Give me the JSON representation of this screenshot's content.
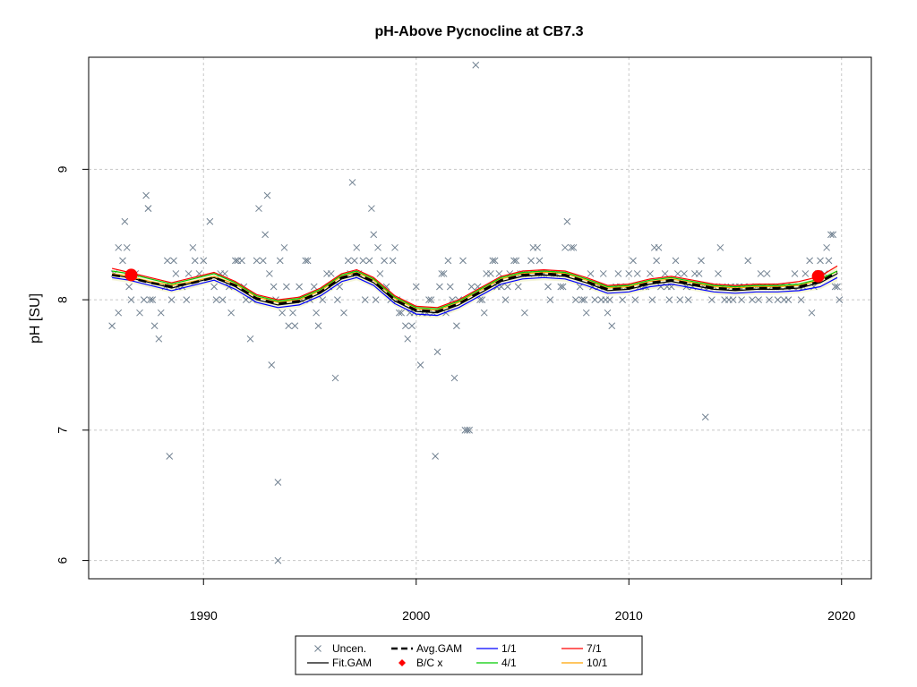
{
  "chart_data": {
    "type": "scatter",
    "title": "pH-Above Pycnocline at CB7.3",
    "xlabel": "",
    "ylabel": "pH [SU]",
    "xlim": [
      1984.6,
      2021.4
    ],
    "ylim": [
      5.86,
      9.86
    ],
    "xticks": [
      1990,
      2000,
      2010,
      2020
    ],
    "yticks": [
      6,
      7,
      8,
      9
    ],
    "xtick_labels": [
      "1990",
      "2000",
      "2010",
      "2020"
    ],
    "ytick_labels": [
      "6",
      "7",
      "8",
      "9"
    ],
    "grid": true,
    "legend_position": "bottom-center",
    "colors": {
      "uncen": "#708090",
      "fit": "#000000",
      "avg": "#000000",
      "bc": "#ff0000",
      "s1_1": "#0000ff",
      "s4_1": "#00cc00",
      "s7_1": "#ff0000",
      "s10_1": "#ffa500",
      "band": "#f5f5d8"
    },
    "legend": [
      {
        "key": "uncen",
        "label": "Uncen."
      },
      {
        "key": "avg",
        "label": "Avg.GAM"
      },
      {
        "key": "s1_1",
        "label": "1/1"
      },
      {
        "key": "s7_1",
        "label": "7/1"
      },
      {
        "key": "fit",
        "label": "Fit.GAM"
      },
      {
        "key": "bc",
        "label": "B/C x"
      },
      {
        "key": "s4_1",
        "label": "4/1"
      },
      {
        "key": "s10_1",
        "label": "10/1"
      }
    ],
    "curve_x": [
      1985.7,
      1986.5,
      1987.5,
      1988.5,
      1989.5,
      1990.5,
      1991.5,
      1992.5,
      1993.5,
      1994.5,
      1995.5,
      1996.5,
      1997.2,
      1998,
      1999,
      2000,
      2001,
      2002,
      2003,
      2004,
      2005,
      2006,
      2007,
      2008,
      2009,
      2010,
      2011,
      2012,
      2013,
      2014,
      2015,
      2016,
      2017,
      2018,
      2019,
      2019.8
    ],
    "series": [
      {
        "name": "Fit.GAM",
        "key": "fit",
        "y": [
          8.19,
          8.17,
          8.13,
          8.09,
          8.13,
          8.17,
          8.1,
          8.0,
          7.96,
          7.98,
          8.05,
          8.16,
          8.19,
          8.13,
          7.99,
          7.91,
          7.9,
          7.96,
          8.05,
          8.14,
          8.18,
          8.19,
          8.18,
          8.13,
          8.07,
          8.08,
          8.12,
          8.14,
          8.11,
          8.08,
          8.07,
          8.08,
          8.08,
          8.09,
          8.13,
          8.2
        ]
      },
      {
        "name": "Avg.GAM",
        "key": "avg",
        "y": [
          8.19,
          8.17,
          8.13,
          8.1,
          8.13,
          8.17,
          8.11,
          8.01,
          7.97,
          7.99,
          8.06,
          8.17,
          8.2,
          8.14,
          8.0,
          7.92,
          7.91,
          7.97,
          8.06,
          8.15,
          8.19,
          8.2,
          8.19,
          8.14,
          8.08,
          8.09,
          8.13,
          8.15,
          8.12,
          8.09,
          8.08,
          8.09,
          8.09,
          8.1,
          8.14,
          8.21
        ]
      },
      {
        "name": "1/1",
        "key": "s1_1",
        "y": [
          8.17,
          8.15,
          8.11,
          8.07,
          8.11,
          8.15,
          8.08,
          7.98,
          7.94,
          7.96,
          8.03,
          8.14,
          8.17,
          8.11,
          7.97,
          7.89,
          7.88,
          7.94,
          8.03,
          8.12,
          8.16,
          8.17,
          8.16,
          8.11,
          8.05,
          8.06,
          8.1,
          8.12,
          8.09,
          8.06,
          8.05,
          8.06,
          8.06,
          8.07,
          8.1,
          8.17
        ]
      },
      {
        "name": "4/1",
        "key": "s4_1",
        "y": [
          8.22,
          8.2,
          8.16,
          8.12,
          8.16,
          8.2,
          8.13,
          8.03,
          7.99,
          8.01,
          8.08,
          8.19,
          8.22,
          8.16,
          8.02,
          7.94,
          7.93,
          7.99,
          8.08,
          8.17,
          8.21,
          8.22,
          8.21,
          8.16,
          8.1,
          8.11,
          8.15,
          8.17,
          8.14,
          8.11,
          8.1,
          8.11,
          8.11,
          8.12,
          8.16,
          8.22
        ]
      },
      {
        "name": "7/1",
        "key": "s7_1",
        "y": [
          8.24,
          8.21,
          8.17,
          8.13,
          8.17,
          8.21,
          8.14,
          8.04,
          8.0,
          8.02,
          8.09,
          8.2,
          8.23,
          8.17,
          8.03,
          7.95,
          7.94,
          8.0,
          8.09,
          8.18,
          8.22,
          8.23,
          8.22,
          8.17,
          8.11,
          8.12,
          8.16,
          8.18,
          8.15,
          8.12,
          8.11,
          8.12,
          8.12,
          8.14,
          8.18,
          8.26
        ]
      },
      {
        "name": "10/1",
        "key": "s10_1",
        "y": [
          8.2,
          8.18,
          8.14,
          8.11,
          8.14,
          8.18,
          8.12,
          8.02,
          7.98,
          8.0,
          8.07,
          8.18,
          8.21,
          8.15,
          8.01,
          7.93,
          7.92,
          7.98,
          8.07,
          8.16,
          8.2,
          8.21,
          8.2,
          8.15,
          8.09,
          8.1,
          8.14,
          8.16,
          8.13,
          8.1,
          8.09,
          8.1,
          8.1,
          8.11,
          8.15,
          8.22
        ]
      }
    ],
    "band_lower": [
      8.15,
      8.13,
      8.09,
      8.05,
      8.09,
      8.13,
      8.06,
      7.96,
      7.92,
      7.94,
      8.01,
      8.12,
      8.15,
      8.09,
      7.95,
      7.87,
      7.86,
      7.92,
      8.01,
      8.1,
      8.14,
      8.15,
      8.14,
      8.09,
      8.03,
      8.04,
      8.08,
      8.1,
      8.07,
      8.04,
      8.03,
      8.04,
      8.04,
      8.05,
      8.08,
      8.14
    ],
    "band_upper": [
      8.23,
      8.21,
      8.17,
      8.13,
      8.17,
      8.21,
      8.14,
      8.04,
      8.0,
      8.02,
      8.09,
      8.2,
      8.23,
      8.17,
      8.03,
      7.95,
      7.94,
      8.0,
      8.09,
      8.18,
      8.22,
      8.23,
      8.22,
      8.17,
      8.11,
      8.12,
      8.16,
      8.18,
      8.15,
      8.12,
      8.11,
      8.12,
      8.12,
      8.14,
      8.18,
      8.26
    ],
    "bc_points": [
      {
        "x": 1986.6,
        "y": 8.19
      },
      {
        "x": 2018.9,
        "y": 8.18
      }
    ],
    "uncen_points": [
      [
        1985.7,
        7.8
      ],
      [
        1985.8,
        8.2
      ],
      [
        1986.0,
        8.4
      ],
      [
        1986.0,
        7.9
      ],
      [
        1986.2,
        8.3
      ],
      [
        1986.3,
        8.6
      ],
      [
        1986.4,
        8.4
      ],
      [
        1986.5,
        8.1
      ],
      [
        1986.6,
        8.0
      ],
      [
        1986.8,
        8.2
      ],
      [
        1987.0,
        7.9
      ],
      [
        1987.2,
        8.0
      ],
      [
        1987.3,
        8.8
      ],
      [
        1987.4,
        8.7
      ],
      [
        1987.4,
        8.7
      ],
      [
        1987.5,
        8.0
      ],
      [
        1987.6,
        8.0
      ],
      [
        1987.7,
        7.8
      ],
      [
        1987.9,
        7.7
      ],
      [
        1988.0,
        7.9
      ],
      [
        1988.2,
        8.1
      ],
      [
        1988.3,
        8.3
      ],
      [
        1988.4,
        6.8
      ],
      [
        1988.5,
        8.0
      ],
      [
        1988.6,
        8.3
      ],
      [
        1988.7,
        8.2
      ],
      [
        1988.8,
        8.1
      ],
      [
        1989.0,
        8.1
      ],
      [
        1989.2,
        8.0
      ],
      [
        1989.3,
        8.2
      ],
      [
        1989.5,
        8.4
      ],
      [
        1989.6,
        8.3
      ],
      [
        1989.8,
        8.2
      ],
      [
        1990.0,
        8.3
      ],
      [
        1990.3,
        8.6
      ],
      [
        1990.5,
        8.1
      ],
      [
        1990.6,
        8.0
      ],
      [
        1990.8,
        8.2
      ],
      [
        1990.9,
        8.0
      ],
      [
        1991.0,
        8.2
      ],
      [
        1991.2,
        8.1
      ],
      [
        1991.3,
        7.9
      ],
      [
        1991.5,
        8.3
      ],
      [
        1991.6,
        8.3
      ],
      [
        1991.8,
        8.3
      ],
      [
        1991.9,
        8.1
      ],
      [
        1992.0,
        8.0
      ],
      [
        1992.2,
        7.7
      ],
      [
        1992.3,
        8.0
      ],
      [
        1992.5,
        8.3
      ],
      [
        1992.6,
        8.7
      ],
      [
        1992.8,
        8.3
      ],
      [
        1992.9,
        8.5
      ],
      [
        1993.0,
        8.8
      ],
      [
        1993.1,
        8.2
      ],
      [
        1993.2,
        7.5
      ],
      [
        1993.3,
        8.1
      ],
      [
        1993.4,
        8.0
      ],
      [
        1993.5,
        6.6
      ],
      [
        1993.5,
        6.0
      ],
      [
        1993.6,
        8.3
      ],
      [
        1993.7,
        7.9
      ],
      [
        1993.8,
        8.4
      ],
      [
        1993.9,
        8.1
      ],
      [
        1994.0,
        7.8
      ],
      [
        1994.2,
        7.9
      ],
      [
        1994.3,
        7.8
      ],
      [
        1994.5,
        8.1
      ],
      [
        1994.6,
        8.0
      ],
      [
        1994.8,
        8.3
      ],
      [
        1994.9,
        8.3
      ],
      [
        1995.0,
        8.0
      ],
      [
        1995.2,
        8.1
      ],
      [
        1995.3,
        7.9
      ],
      [
        1995.4,
        7.8
      ],
      [
        1995.6,
        8.0
      ],
      [
        1995.8,
        8.2
      ],
      [
        1995.9,
        8.1
      ],
      [
        1996.0,
        8.2
      ],
      [
        1996.2,
        7.4
      ],
      [
        1996.3,
        8.0
      ],
      [
        1996.4,
        8.1
      ],
      [
        1996.6,
        7.9
      ],
      [
        1996.8,
        8.3
      ],
      [
        1996.9,
        8.2
      ],
      [
        1997.0,
        8.9
      ],
      [
        1997.1,
        8.3
      ],
      [
        1997.2,
        8.4
      ],
      [
        1997.3,
        8.2
      ],
      [
        1997.5,
        8.3
      ],
      [
        1997.6,
        8.0
      ],
      [
        1997.8,
        8.3
      ],
      [
        1997.9,
        8.7
      ],
      [
        1998.0,
        8.5
      ],
      [
        1998.1,
        8.0
      ],
      [
        1998.2,
        8.4
      ],
      [
        1998.3,
        8.2
      ],
      [
        1998.5,
        8.3
      ],
      [
        1998.6,
        8.1
      ],
      [
        1998.8,
        8.0
      ],
      [
        1998.9,
        8.3
      ],
      [
        1999.0,
        8.4
      ],
      [
        1999.1,
        8.0
      ],
      [
        1999.2,
        7.9
      ],
      [
        1999.3,
        7.9
      ],
      [
        1999.5,
        7.8
      ],
      [
        1999.6,
        7.7
      ],
      [
        1999.7,
        7.9
      ],
      [
        1999.8,
        7.8
      ],
      [
        1999.9,
        7.9
      ],
      [
        2000.0,
        8.1
      ],
      [
        2000.2,
        7.5
      ],
      [
        2000.3,
        7.9
      ],
      [
        2000.5,
        7.9
      ],
      [
        2000.6,
        8.0
      ],
      [
        2000.7,
        8.0
      ],
      [
        2000.8,
        7.9
      ],
      [
        2000.9,
        6.8
      ],
      [
        2001.0,
        7.6
      ],
      [
        2001.1,
        8.1
      ],
      [
        2001.2,
        8.2
      ],
      [
        2001.3,
        8.2
      ],
      [
        2001.4,
        7.9
      ],
      [
        2001.5,
        8.3
      ],
      [
        2001.6,
        8.1
      ],
      [
        2001.7,
        8.0
      ],
      [
        2001.8,
        7.4
      ],
      [
        2001.9,
        7.8
      ],
      [
        2002.0,
        8.0
      ],
      [
        2002.2,
        8.3
      ],
      [
        2002.3,
        7.0
      ],
      [
        2002.4,
        7.0
      ],
      [
        2002.5,
        7.0
      ],
      [
        2002.6,
        8.1
      ],
      [
        2002.8,
        9.8
      ],
      [
        2002.9,
        8.1
      ],
      [
        2003.0,
        8.0
      ],
      [
        2003.1,
        8.0
      ],
      [
        2003.2,
        7.9
      ],
      [
        2003.3,
        8.2
      ],
      [
        2003.5,
        8.2
      ],
      [
        2003.6,
        8.3
      ],
      [
        2003.7,
        8.3
      ],
      [
        2003.8,
        8.1
      ],
      [
        2003.9,
        8.2
      ],
      [
        2004.0,
        8.1
      ],
      [
        2004.2,
        8.0
      ],
      [
        2004.3,
        8.1
      ],
      [
        2004.4,
        8.2
      ],
      [
        2004.6,
        8.3
      ],
      [
        2004.7,
        8.3
      ],
      [
        2004.8,
        8.1
      ],
      [
        2004.9,
        8.2
      ],
      [
        2005.0,
        8.2
      ],
      [
        2005.1,
        7.9
      ],
      [
        2005.3,
        8.2
      ],
      [
        2005.4,
        8.3
      ],
      [
        2005.5,
        8.4
      ],
      [
        2005.7,
        8.4
      ],
      [
        2005.8,
        8.3
      ],
      [
        2005.9,
        8.2
      ],
      [
        2006.0,
        8.2
      ],
      [
        2006.2,
        8.1
      ],
      [
        2006.3,
        8.0
      ],
      [
        2006.5,
        8.2
      ],
      [
        2006.6,
        8.2
      ],
      [
        2006.8,
        8.1
      ],
      [
        2006.9,
        8.1
      ],
      [
        2007.0,
        8.4
      ],
      [
        2007.1,
        8.6
      ],
      [
        2007.3,
        8.4
      ],
      [
        2007.4,
        8.4
      ],
      [
        2007.5,
        8.0
      ],
      [
        2007.7,
        8.1
      ],
      [
        2007.8,
        8.0
      ],
      [
        2007.9,
        8.0
      ],
      [
        2008.0,
        7.9
      ],
      [
        2008.2,
        8.2
      ],
      [
        2008.3,
        8.1
      ],
      [
        2008.4,
        8.0
      ],
      [
        2008.6,
        8.1
      ],
      [
        2008.7,
        8.0
      ],
      [
        2008.8,
        8.2
      ],
      [
        2008.9,
        8.0
      ],
      [
        2009.0,
        7.9
      ],
      [
        2009.1,
        8.0
      ],
      [
        2009.2,
        7.8
      ],
      [
        2009.4,
        8.1
      ],
      [
        2009.5,
        8.2
      ],
      [
        2009.6,
        8.1
      ],
      [
        2009.7,
        8.0
      ],
      [
        2009.9,
        8.1
      ],
      [
        2010.0,
        8.2
      ],
      [
        2010.2,
        8.3
      ],
      [
        2010.3,
        8.0
      ],
      [
        2010.4,
        8.2
      ],
      [
        2010.5,
        8.1
      ],
      [
        2010.7,
        8.1
      ],
      [
        2010.8,
        8.1
      ],
      [
        2011.0,
        8.2
      ],
      [
        2011.1,
        8.0
      ],
      [
        2011.2,
        8.4
      ],
      [
        2011.3,
        8.3
      ],
      [
        2011.4,
        8.4
      ],
      [
        2011.5,
        8.1
      ],
      [
        2011.7,
        8.2
      ],
      [
        2011.8,
        8.1
      ],
      [
        2011.9,
        8.0
      ],
      [
        2012.0,
        8.1
      ],
      [
        2012.2,
        8.3
      ],
      [
        2012.3,
        8.2
      ],
      [
        2012.4,
        8.0
      ],
      [
        2012.6,
        8.2
      ],
      [
        2012.7,
        8.1
      ],
      [
        2012.8,
        8.0
      ],
      [
        2013.0,
        8.1
      ],
      [
        2013.1,
        8.2
      ],
      [
        2013.3,
        8.2
      ],
      [
        2013.4,
        8.3
      ],
      [
        2013.5,
        8.1
      ],
      [
        2013.6,
        7.1
      ],
      [
        2013.8,
        8.1
      ],
      [
        2013.9,
        8.0
      ],
      [
        2014.0,
        8.1
      ],
      [
        2014.2,
        8.2
      ],
      [
        2014.3,
        8.4
      ],
      [
        2014.4,
        8.1
      ],
      [
        2014.5,
        8.0
      ],
      [
        2014.7,
        8.0
      ],
      [
        2014.8,
        8.1
      ],
      [
        2014.9,
        8.0
      ],
      [
        2015.0,
        8.1
      ],
      [
        2015.2,
        8.1
      ],
      [
        2015.3,
        8.0
      ],
      [
        2015.4,
        8.1
      ],
      [
        2015.6,
        8.3
      ],
      [
        2015.7,
        8.1
      ],
      [
        2015.8,
        8.0
      ],
      [
        2016.0,
        8.1
      ],
      [
        2016.1,
        8.0
      ],
      [
        2016.2,
        8.2
      ],
      [
        2016.3,
        8.1
      ],
      [
        2016.5,
        8.2
      ],
      [
        2016.6,
        8.0
      ],
      [
        2016.7,
        8.1
      ],
      [
        2016.9,
        8.1
      ],
      [
        2017.0,
        8.0
      ],
      [
        2017.1,
        8.1
      ],
      [
        2017.3,
        8.0
      ],
      [
        2017.4,
        8.1
      ],
      [
        2017.5,
        8.0
      ],
      [
        2017.7,
        8.1
      ],
      [
        2017.8,
        8.2
      ],
      [
        2018.0,
        8.1
      ],
      [
        2018.1,
        8.0
      ],
      [
        2018.2,
        8.1
      ],
      [
        2018.3,
        8.2
      ],
      [
        2018.5,
        8.3
      ],
      [
        2018.6,
        7.9
      ],
      [
        2018.7,
        8.1
      ],
      [
        2018.9,
        8.2
      ],
      [
        2019.0,
        8.3
      ],
      [
        2019.2,
        8.2
      ],
      [
        2019.3,
        8.4
      ],
      [
        2019.4,
        8.3
      ],
      [
        2019.5,
        8.5
      ],
      [
        2019.6,
        8.5
      ],
      [
        2019.7,
        8.1
      ],
      [
        2019.8,
        8.1
      ],
      [
        2019.9,
        8.0
      ]
    ]
  }
}
